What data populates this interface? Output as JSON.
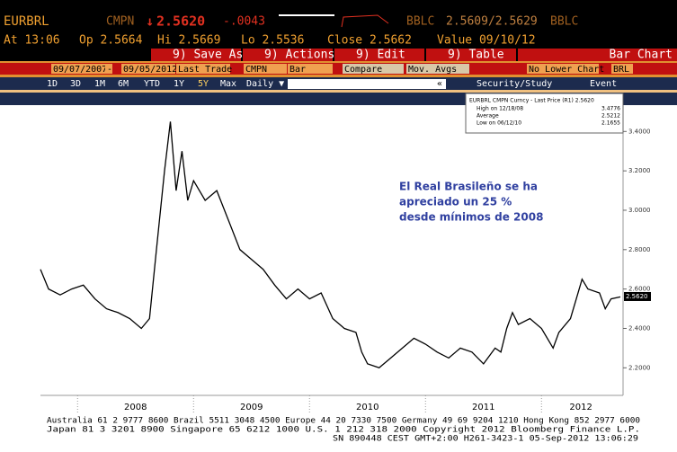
{
  "header": {
    "symbol": "EURBRL",
    "source": "CMPN",
    "arrow": "↓",
    "last": "2.5620",
    "change": "-.0043",
    "quote_source": "BBLC",
    "bid_ask": "2.5609/2.5629",
    "quote_source_2": "BBLC",
    "stats": [
      "At 13:06",
      "Op 2.5664",
      "Hi 2.5669",
      "Lo 2.5536",
      "Close 2.5662",
      "Value 09/10/12"
    ]
  },
  "toolbar": {
    "title": "EURBRL CMPN Curn",
    "buttons": [
      "9) Save As",
      "9) Actions",
      "9) Edit",
      "9) Table"
    ],
    "view": "Bar Chart"
  },
  "settings": {
    "start": "09/07/2007",
    "dash": "-",
    "end": "09/05/2012",
    "field": "Last Trade",
    "source": "CMPN",
    "style": "Bar",
    "compare": "Compare",
    "averages": "Mov. Avgs",
    "lower": "No Lower Chart",
    "currency": "BRL"
  },
  "periods": {
    "items": [
      "1D",
      "3D",
      "1M",
      "6M",
      "YTD",
      "1Y",
      "5Y",
      "Max"
    ],
    "frequency": "Daily ▼",
    "collapse": "«",
    "study": "Security/Study",
    "event": "Event"
  },
  "chart_data": {
    "type": "line",
    "x": [
      2007.68,
      2007.75,
      2007.85,
      2007.95,
      2008.05,
      2008.15,
      2008.25,
      2008.35,
      2008.45,
      2008.55,
      2008.62,
      2008.68,
      2008.75,
      2008.8,
      2008.85,
      2008.9,
      2008.95,
      2009.0,
      2009.1,
      2009.2,
      2009.3,
      2009.4,
      2009.5,
      2009.6,
      2009.7,
      2009.8,
      2009.9,
      2010.0,
      2010.1,
      2010.2,
      2010.3,
      2010.4,
      2010.45,
      2010.5,
      2010.6,
      2010.7,
      2010.8,
      2010.9,
      2011.0,
      2011.1,
      2011.2,
      2011.3,
      2011.4,
      2011.5,
      2011.6,
      2011.65,
      2011.7,
      2011.75,
      2011.8,
      2011.9,
      2012.0,
      2012.1,
      2012.15,
      2012.25,
      2012.3,
      2012.35,
      2012.4,
      2012.5,
      2012.55,
      2012.6,
      2012.68
    ],
    "series": [
      {
        "name": "EURBRL CMPN Curncy - Last Price (R1) 2.5620",
        "color": "#000000",
        "values": [
          2.7,
          2.6,
          2.57,
          2.6,
          2.62,
          2.55,
          2.5,
          2.48,
          2.45,
          2.4,
          2.45,
          2.8,
          3.2,
          3.45,
          3.1,
          3.3,
          3.05,
          3.15,
          3.05,
          3.1,
          2.95,
          2.8,
          2.75,
          2.7,
          2.62,
          2.55,
          2.6,
          2.55,
          2.58,
          2.45,
          2.4,
          2.38,
          2.28,
          2.22,
          2.2,
          2.25,
          2.3,
          2.35,
          2.32,
          2.28,
          2.25,
          2.3,
          2.28,
          2.22,
          2.3,
          2.28,
          2.4,
          2.48,
          2.42,
          2.45,
          2.4,
          2.3,
          2.38,
          2.45,
          2.55,
          2.65,
          2.6,
          2.58,
          2.5,
          2.55,
          2.56
        ]
      }
    ],
    "legend_stats": [
      {
        "label": "High on 12/18/08",
        "value": "3.4776"
      },
      {
        "label": "Average",
        "value": "2.5212"
      },
      {
        "label": "Low on 06/12/10",
        "value": "2.1655"
      }
    ],
    "last_marker": {
      "value": 2.562,
      "label": "2.5620"
    },
    "xlim": [
      2007.68,
      2012.68
    ],
    "xticks": [
      2008,
      2009,
      2010,
      2011,
      2012
    ],
    "ylim": [
      2.06,
      3.52
    ],
    "yticks": [
      {
        "value": 2.2,
        "label": "2.2000"
      },
      {
        "value": 2.4,
        "label": "2.4000"
      },
      {
        "value": 2.6,
        "label": "2.6000"
      },
      {
        "value": 2.8,
        "label": "2.8000"
      },
      {
        "value": 3.0,
        "label": "3.0000"
      },
      {
        "value": 3.2,
        "label": "3.2000"
      },
      {
        "value": 3.4,
        "label": "3.4000"
      }
    ],
    "annotation": [
      "El Real Brasileño se ha",
      "apreciado un 25 %",
      "desde mínimos de 2008"
    ]
  },
  "footer": [
    "Australia 61 2 9777 8600 Brazil 5511 3048 4500 Europe 44 20 7330 7500 Germany 49 69 9204 1210 Hong Kong 852 2977 6000",
    "Japan 81 3 3201 8900          Singapore 65 6212 1000    U.S. 1 212 318 2000          Copyright 2012 Bloomberg Finance L.P.",
    "SN 890448 CEST  GMT+2:00 H261-3423-1 05-Sep-2012 13:06:29"
  ]
}
